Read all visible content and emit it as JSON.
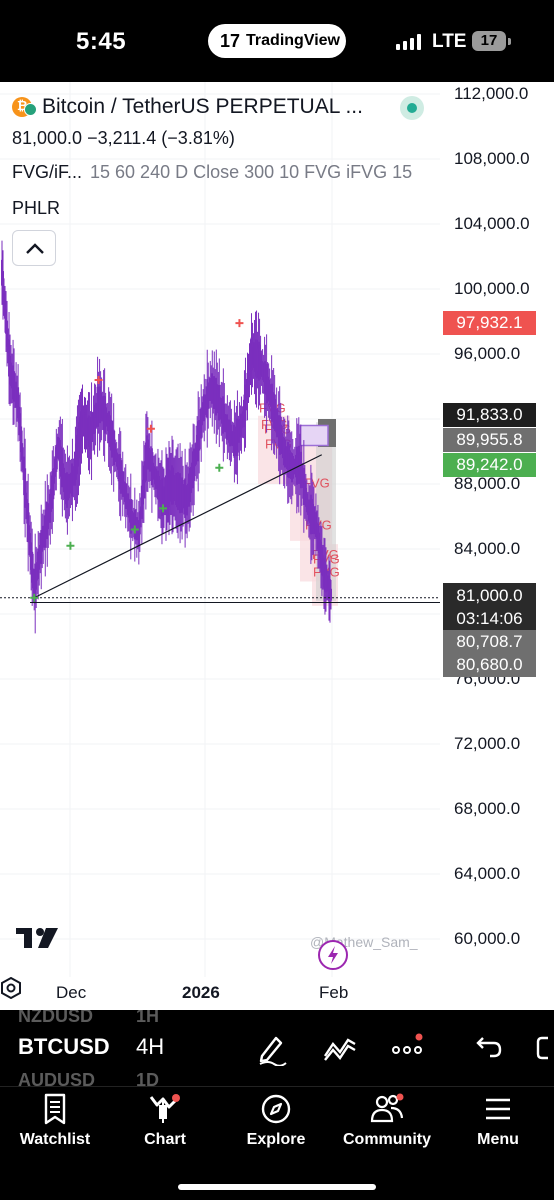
{
  "status_bar": {
    "time": "5:45",
    "app_pill": "TradingView",
    "network": "LTE",
    "battery": "17"
  },
  "legend": {
    "symbol": "Bitcoin / TetherUS PERPETUAL ...",
    "price_line": "81,000.0  −3,211.4  (−3.81%)",
    "indicator_name": "FVG/iF...",
    "indicator_params": "15 60 240 D Close 300 10 FVG iFVG 15",
    "indicator2": "PHLR"
  },
  "price_axis": {
    "ticks": [
      "112,000.0",
      "108,000.0",
      "104,000.0",
      "100,000.0",
      "96,000.0",
      "88,000.0",
      "84,000.0",
      "76,000.0",
      "72,000.0",
      "68,000.0",
      "64,000.0",
      "60,000.0"
    ],
    "tags": {
      "high": "97,932.1",
      "level_a": "91,833.0",
      "level_b": "89,955.8",
      "level_c": "89,242.0",
      "current": "81,000.0",
      "countdown": "03:14:06",
      "level_d": "80,708.7",
      "level_e": "80,680.0"
    }
  },
  "time_axis": {
    "labels": [
      "Dec",
      "2026",
      "Feb"
    ]
  },
  "watermark": "@Mathew_Sam_",
  "fvg_label": "FVG",
  "colors": {
    "candle": "#7b2fbe",
    "fvg_box": "#f8d9dd",
    "fvg_text": "#e0525f",
    "positive": "#4caf50",
    "negative": "#ef5350",
    "accent": "#2962ff"
  },
  "symbol_bar": {
    "symbol": "BTCUSD",
    "interval": "4H",
    "ghost_above_symbol": "NZDUSD",
    "ghost_above_interval": "1H",
    "ghost_below_symbol": "AUDUSD",
    "ghost_below_interval": "1D"
  },
  "bottom_nav": {
    "items": [
      {
        "label": "Watchlist",
        "icon": "watchlist-icon"
      },
      {
        "label": "Chart",
        "icon": "chart-icon"
      },
      {
        "label": "Explore",
        "icon": "compass-icon"
      },
      {
        "label": "Community",
        "icon": "community-icon"
      },
      {
        "label": "Menu",
        "icon": "menu-icon"
      }
    ]
  },
  "chart_data": {
    "type": "candlestick",
    "title": "Bitcoin / TetherUS PERPETUAL",
    "interval": "4H",
    "x_labels": [
      "Dec",
      "2026",
      "Feb"
    ],
    "ylim": [
      58000,
      113000
    ],
    "y_ticks": [
      60000,
      64000,
      68000,
      72000,
      76000,
      84000,
      88000,
      96000,
      100000,
      104000,
      108000,
      112000
    ],
    "close_path": [
      [
        0,
        101000
      ],
      [
        2,
        95000
      ],
      [
        4,
        93000
      ],
      [
        6,
        87000
      ],
      [
        8,
        81500
      ],
      [
        10,
        84500
      ],
      [
        12,
        86500
      ],
      [
        14,
        90500
      ],
      [
        16,
        87500
      ],
      [
        18,
        88500
      ],
      [
        20,
        92000
      ],
      [
        22,
        91000
      ],
      [
        24,
        93000
      ],
      [
        26,
        92000
      ],
      [
        28,
        90000
      ],
      [
        30,
        88000
      ],
      [
        32,
        86000
      ],
      [
        34,
        85000
      ],
      [
        36,
        90000
      ],
      [
        38,
        88500
      ],
      [
        40,
        87000
      ],
      [
        42,
        88000
      ],
      [
        44,
        87500
      ],
      [
        46,
        87000
      ],
      [
        48,
        89500
      ],
      [
        50,
        92500
      ],
      [
        52,
        94000
      ],
      [
        54,
        93000
      ],
      [
        56,
        91500
      ],
      [
        58,
        90500
      ],
      [
        60,
        92000
      ],
      [
        62,
        96000
      ],
      [
        64,
        95500
      ],
      [
        66,
        94000
      ],
      [
        68,
        92000
      ],
      [
        70,
        90000
      ],
      [
        72,
        89000
      ],
      [
        74,
        89200
      ],
      [
        76,
        86500
      ],
      [
        78,
        85500
      ],
      [
        80,
        82500
      ],
      [
        82,
        81000
      ]
    ],
    "markers": [
      {
        "x": 8,
        "y": 81000,
        "kind": "low"
      },
      {
        "x": 17,
        "y": 84200,
        "kind": "low"
      },
      {
        "x": 33,
        "y": 85200,
        "kind": "low"
      },
      {
        "x": 40,
        "y": 86500,
        "kind": "low"
      },
      {
        "x": 54,
        "y": 89000,
        "kind": "low"
      },
      {
        "x": 24,
        "y": 94400,
        "kind": "high"
      },
      {
        "x": 37,
        "y": 91400,
        "kind": "high"
      },
      {
        "x": 59,
        "y": 97900,
        "kind": "high"
      }
    ],
    "trendline": [
      [
        8,
        81000
      ],
      [
        72,
        89800
      ]
    ],
    "horizontal_lines": [
      81000,
      80708.7
    ],
    "key_levels": [
      97932.1,
      91833.0,
      89955.8,
      89242.0,
      81000.0,
      80708.7,
      80680.0
    ]
  }
}
